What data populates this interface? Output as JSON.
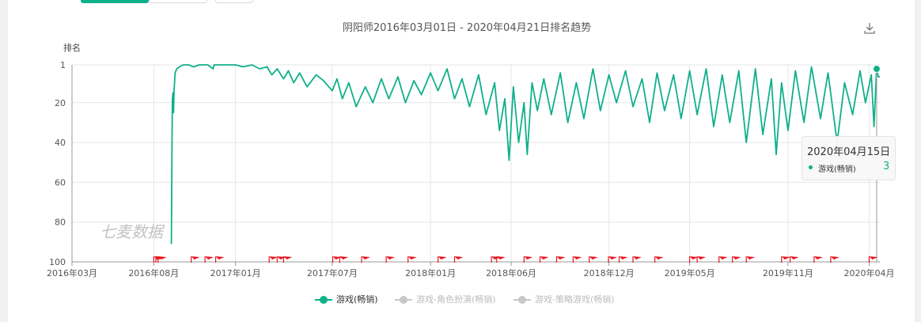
{
  "page": {
    "title": "阴阳师2016年03月01日 - 2020年04月21日排名趋势",
    "y_axis_title": "排名",
    "watermark": "七麦数据",
    "icons": {
      "download": "download-icon"
    }
  },
  "colors": {
    "primary_series": "#0fb08a",
    "inactive": "#c8c8c8",
    "flag": "#e8141e",
    "grid": "#e6e6e6",
    "axis": "#999999"
  },
  "tooltip": {
    "date": "2020年04月15日",
    "series": "游戏(畅销)",
    "value": "3"
  },
  "legend": [
    {
      "label": "游戏(畅销)",
      "active": true
    },
    {
      "label": "游戏-角色扮演(畅销)",
      "active": false
    },
    {
      "label": "游戏-策略游戏(畅销)",
      "active": false
    }
  ],
  "chart_data": {
    "type": "line",
    "title": "阴阳师2016年03月01日 - 2020年04月21日排名趋势",
    "ylabel": "排名",
    "y_inverted": true,
    "ylim": [
      1,
      100
    ],
    "y_ticks": [
      1,
      20,
      40,
      60,
      80,
      100
    ],
    "x_range": [
      "2016-03-01",
      "2020-04-21"
    ],
    "x_ticks": [
      {
        "date": "2016-03-01",
        "label": "2016年03月"
      },
      {
        "date": "2016-08-01",
        "label": "2016年08月"
      },
      {
        "date": "2017-01-01",
        "label": "2017年01月"
      },
      {
        "date": "2017-07-01",
        "label": "2017年07月"
      },
      {
        "date": "2018-01-01",
        "label": "2018年01月"
      },
      {
        "date": "2018-06-01",
        "label": "2018年06月"
      },
      {
        "date": "2018-12-01",
        "label": "2018年12月"
      },
      {
        "date": "2019-05-01",
        "label": "2019年05月"
      },
      {
        "date": "2019-11-01",
        "label": "2019年11月"
      },
      {
        "date": "2020-04-01",
        "label": "2020年04月"
      }
    ],
    "grid": true,
    "legend_position": "bottom",
    "series": [
      {
        "name": "游戏(畅销)",
        "color": "#0fb08a",
        "points": [
          [
            "2016-09-03",
            91
          ],
          [
            "2016-09-04",
            45
          ],
          [
            "2016-09-05",
            18
          ],
          [
            "2016-09-06",
            15
          ],
          [
            "2016-09-07",
            25
          ],
          [
            "2016-09-08",
            14
          ],
          [
            "2016-09-10",
            5
          ],
          [
            "2016-09-13",
            3
          ],
          [
            "2016-09-18",
            2
          ],
          [
            "2016-09-25",
            1
          ],
          [
            "2016-10-05",
            1
          ],
          [
            "2016-10-15",
            2
          ],
          [
            "2016-10-25",
            1
          ],
          [
            "2016-11-10",
            1
          ],
          [
            "2016-11-20",
            3
          ],
          [
            "2016-11-22",
            1
          ],
          [
            "2016-12-10",
            1
          ],
          [
            "2017-01-01",
            1
          ],
          [
            "2017-01-15",
            2
          ],
          [
            "2017-02-01",
            1
          ],
          [
            "2017-02-15",
            3
          ],
          [
            "2017-03-01",
            2
          ],
          [
            "2017-03-10",
            6
          ],
          [
            "2017-03-20",
            3
          ],
          [
            "2017-04-01",
            8
          ],
          [
            "2017-04-10",
            4
          ],
          [
            "2017-04-20",
            10
          ],
          [
            "2017-05-01",
            5
          ],
          [
            "2017-05-15",
            12
          ],
          [
            "2017-06-01",
            6
          ],
          [
            "2017-06-15",
            9
          ],
          [
            "2017-07-01",
            14
          ],
          [
            "2017-07-10",
            8
          ],
          [
            "2017-07-20",
            18
          ],
          [
            "2017-08-01",
            10
          ],
          [
            "2017-08-15",
            22
          ],
          [
            "2017-09-01",
            12
          ],
          [
            "2017-09-15",
            20
          ],
          [
            "2017-10-01",
            8
          ],
          [
            "2017-10-15",
            18
          ],
          [
            "2017-11-01",
            7
          ],
          [
            "2017-11-15",
            20
          ],
          [
            "2017-12-01",
            9
          ],
          [
            "2017-12-15",
            16
          ],
          [
            "2018-01-01",
            5
          ],
          [
            "2018-01-15",
            14
          ],
          [
            "2018-02-01",
            3
          ],
          [
            "2018-02-15",
            18
          ],
          [
            "2018-03-01",
            8
          ],
          [
            "2018-03-15",
            22
          ],
          [
            "2018-04-01",
            6
          ],
          [
            "2018-04-15",
            26
          ],
          [
            "2018-05-01",
            10
          ],
          [
            "2018-05-10",
            34
          ],
          [
            "2018-05-20",
            18
          ],
          [
            "2018-05-28",
            49
          ],
          [
            "2018-06-05",
            12
          ],
          [
            "2018-06-15",
            40
          ],
          [
            "2018-06-25",
            20
          ],
          [
            "2018-07-01",
            46
          ],
          [
            "2018-07-10",
            10
          ],
          [
            "2018-07-20",
            24
          ],
          [
            "2018-08-01",
            8
          ],
          [
            "2018-08-15",
            26
          ],
          [
            "2018-09-01",
            5
          ],
          [
            "2018-09-15",
            30
          ],
          [
            "2018-10-01",
            10
          ],
          [
            "2018-10-15",
            28
          ],
          [
            "2018-11-01",
            3
          ],
          [
            "2018-11-15",
            24
          ],
          [
            "2018-12-01",
            6
          ],
          [
            "2018-12-15",
            20
          ],
          [
            "2019-01-01",
            4
          ],
          [
            "2019-01-15",
            22
          ],
          [
            "2019-02-01",
            8
          ],
          [
            "2019-02-15",
            30
          ],
          [
            "2019-03-01",
            5
          ],
          [
            "2019-03-15",
            24
          ],
          [
            "2019-04-01",
            6
          ],
          [
            "2019-04-15",
            28
          ],
          [
            "2019-05-01",
            4
          ],
          [
            "2019-05-15",
            26
          ],
          [
            "2019-06-01",
            3
          ],
          [
            "2019-06-15",
            32
          ],
          [
            "2019-07-01",
            6
          ],
          [
            "2019-07-15",
            30
          ],
          [
            "2019-08-01",
            4
          ],
          [
            "2019-08-15",
            40
          ],
          [
            "2019-09-01",
            3
          ],
          [
            "2019-09-15",
            36
          ],
          [
            "2019-10-01",
            8
          ],
          [
            "2019-10-10",
            46
          ],
          [
            "2019-10-20",
            10
          ],
          [
            "2019-11-01",
            34
          ],
          [
            "2019-11-15",
            4
          ],
          [
            "2019-12-01",
            30
          ],
          [
            "2019-12-15",
            2
          ],
          [
            "2020-01-01",
            28
          ],
          [
            "2020-01-15",
            5
          ],
          [
            "2020-02-01",
            40
          ],
          [
            "2020-02-15",
            10
          ],
          [
            "2020-03-01",
            26
          ],
          [
            "2020-03-15",
            4
          ],
          [
            "2020-03-25",
            20
          ],
          [
            "2020-04-05",
            6
          ],
          [
            "2020-04-10",
            32
          ],
          [
            "2020-04-15",
            3
          ],
          [
            "2020-04-18",
            7
          ],
          [
            "2020-04-21",
            7
          ]
        ]
      },
      {
        "name": "游戏-角色扮演(畅销)",
        "color": "#c8c8c8",
        "points": []
      },
      {
        "name": "游戏-策略游戏(畅销)",
        "color": "#c8c8c8",
        "points": []
      }
    ],
    "event_flags": [
      "2016-08-01",
      "2016-08-05",
      "2016-08-09",
      "2016-10-10",
      "2016-11-05",
      "2016-11-25",
      "2017-03-05",
      "2017-03-20",
      "2017-04-01",
      "2017-07-02",
      "2017-07-15",
      "2017-08-25",
      "2017-10-10",
      "2017-11-20",
      "2018-01-15",
      "2018-02-15",
      "2018-04-25",
      "2018-05-05",
      "2018-06-25",
      "2018-07-25",
      "2018-08-25",
      "2018-09-25",
      "2018-10-25",
      "2018-11-30",
      "2018-12-20",
      "2019-01-15",
      "2019-02-25",
      "2019-05-01",
      "2019-05-15",
      "2019-06-25",
      "2019-07-20",
      "2019-08-15",
      "2019-10-20",
      "2019-11-05",
      "2019-12-20",
      "2020-01-20",
      "2020-04-01"
    ],
    "highlight": {
      "date": "2020-04-15",
      "value": 3
    }
  }
}
